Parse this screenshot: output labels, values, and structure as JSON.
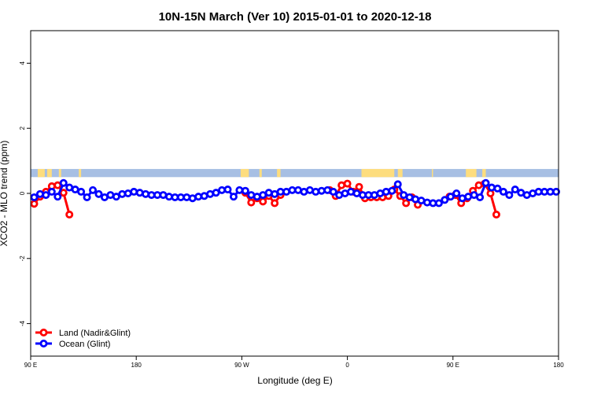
{
  "chart_data": {
    "type": "line",
    "title": "10N-15N March (Ver 10)   2015-01-01 to 2020-12-18",
    "xlabel": "Longitude (deg E)",
    "ylabel": "XCO2 - MLO trend (ppm)",
    "xlim": [
      90,
      540
    ],
    "ylim": [
      -5,
      5
    ],
    "xticks": [
      {
        "value": 90,
        "label": "90 E"
      },
      {
        "value": 180,
        "label": "180"
      },
      {
        "value": 270,
        "label": "90 W"
      },
      {
        "value": 360,
        "label": "0"
      },
      {
        "value": 450,
        "label": "90 E"
      },
      {
        "value": 540,
        "label": "180"
      }
    ],
    "yticks": [
      -4,
      -2,
      0,
      2,
      4
    ],
    "legend_position": "bottom-left",
    "land_band": {
      "ymin": 0.5,
      "ymax": 0.75,
      "ocean_color": "#a7bfe3",
      "land_color": "#fddd7e"
    },
    "series": [
      {
        "name": "Land (Nadir&Glint)",
        "color": "#ff0000",
        "segments": [
          [
            [
              93,
              -0.32
            ],
            [
              98,
              -0.1
            ],
            [
              103,
              0.05
            ],
            [
              108,
              0.22
            ],
            [
              113,
              0.25
            ],
            [
              118,
              0.02
            ],
            [
              123,
              -0.65
            ]
          ],
          [
            [
              273,
              0.02
            ],
            [
              278,
              -0.28
            ],
            [
              283,
              -0.15
            ],
            [
              288,
              -0.25
            ],
            [
              293,
              -0.08
            ],
            [
              298,
              -0.3
            ],
            [
              303,
              -0.05
            ]
          ],
          [
            [
              345,
              0.1
            ],
            [
              350,
              -0.08
            ],
            [
              355,
              0.25
            ],
            [
              360,
              0.3
            ],
            [
              365,
              0.05
            ],
            [
              370,
              0.2
            ],
            [
              375,
              -0.15
            ],
            [
              380,
              -0.12
            ],
            [
              385,
              -0.12
            ],
            [
              390,
              -0.12
            ],
            [
              395,
              -0.08
            ],
            [
              400,
              0.12
            ],
            [
              405,
              -0.08
            ],
            [
              410,
              -0.3
            ],
            [
              415,
              -0.12
            ],
            [
              420,
              -0.35
            ]
          ],
          [
            [
              447,
              -0.1
            ],
            [
              452,
              -0.05
            ],
            [
              457,
              -0.3
            ],
            [
              462,
              -0.15
            ],
            [
              467,
              0.08
            ],
            [
              472,
              0.25
            ],
            [
              477,
              0.3
            ],
            [
              482,
              0.0
            ],
            [
              487,
              -0.65
            ]
          ]
        ]
      },
      {
        "name": "Ocean (Glint)",
        "color": "#0000ff",
        "points": [
          [
            93,
            -0.12
          ],
          [
            98,
            -0.02
          ],
          [
            103,
            -0.05
          ],
          [
            108,
            0.05
          ],
          [
            113,
            -0.1
          ],
          [
            118,
            0.32
          ],
          [
            123,
            0.18
          ],
          [
            128,
            0.12
          ],
          [
            133,
            0.05
          ],
          [
            138,
            -0.12
          ],
          [
            143,
            0.1
          ],
          [
            148,
            -0.02
          ],
          [
            153,
            -0.12
          ],
          [
            158,
            -0.05
          ],
          [
            163,
            -0.1
          ],
          [
            168,
            -0.02
          ],
          [
            173,
            0.0
          ],
          [
            178,
            0.05
          ],
          [
            183,
            0.02
          ],
          [
            188,
            -0.02
          ],
          [
            193,
            -0.05
          ],
          [
            198,
            -0.05
          ],
          [
            203,
            -0.05
          ],
          [
            208,
            -0.1
          ],
          [
            213,
            -0.12
          ],
          [
            218,
            -0.12
          ],
          [
            223,
            -0.12
          ],
          [
            228,
            -0.15
          ],
          [
            233,
            -0.1
          ],
          [
            238,
            -0.08
          ],
          [
            243,
            -0.02
          ],
          [
            248,
            0.02
          ],
          [
            253,
            0.1
          ],
          [
            258,
            0.12
          ],
          [
            263,
            -0.1
          ],
          [
            268,
            0.1
          ],
          [
            273,
            0.08
          ],
          [
            278,
            -0.05
          ],
          [
            283,
            -0.1
          ],
          [
            288,
            -0.05
          ],
          [
            293,
            0.02
          ],
          [
            298,
            -0.02
          ],
          [
            303,
            0.05
          ],
          [
            308,
            0.05
          ],
          [
            313,
            0.1
          ],
          [
            318,
            0.1
          ],
          [
            323,
            0.05
          ],
          [
            328,
            0.1
          ],
          [
            333,
            0.05
          ],
          [
            338,
            0.08
          ],
          [
            343,
            0.1
          ],
          [
            348,
            0.05
          ],
          [
            353,
            -0.05
          ],
          [
            358,
            0.0
          ],
          [
            363,
            0.05
          ],
          [
            368,
            0.0
          ],
          [
            373,
            -0.05
          ],
          [
            378,
            -0.05
          ],
          [
            383,
            -0.05
          ],
          [
            388,
            0.0
          ],
          [
            393,
            0.05
          ],
          [
            398,
            0.08
          ],
          [
            403,
            0.28
          ],
          [
            408,
            -0.05
          ],
          [
            413,
            -0.12
          ],
          [
            418,
            -0.18
          ],
          [
            423,
            -0.22
          ],
          [
            428,
            -0.28
          ],
          [
            433,
            -0.3
          ],
          [
            438,
            -0.3
          ],
          [
            443,
            -0.2
          ],
          [
            448,
            -0.1
          ],
          [
            453,
            0.0
          ],
          [
            458,
            -0.15
          ],
          [
            463,
            -0.1
          ],
          [
            468,
            -0.05
          ],
          [
            473,
            -0.12
          ],
          [
            478,
            0.32
          ],
          [
            483,
            0.18
          ],
          [
            488,
            0.15
          ],
          [
            493,
            0.05
          ],
          [
            498,
            -0.05
          ],
          [
            503,
            0.12
          ],
          [
            508,
            0.02
          ],
          [
            513,
            -0.05
          ],
          [
            518,
            0.0
          ],
          [
            523,
            0.05
          ],
          [
            528,
            0.05
          ],
          [
            533,
            0.05
          ],
          [
            538,
            0.05
          ]
        ]
      }
    ]
  }
}
